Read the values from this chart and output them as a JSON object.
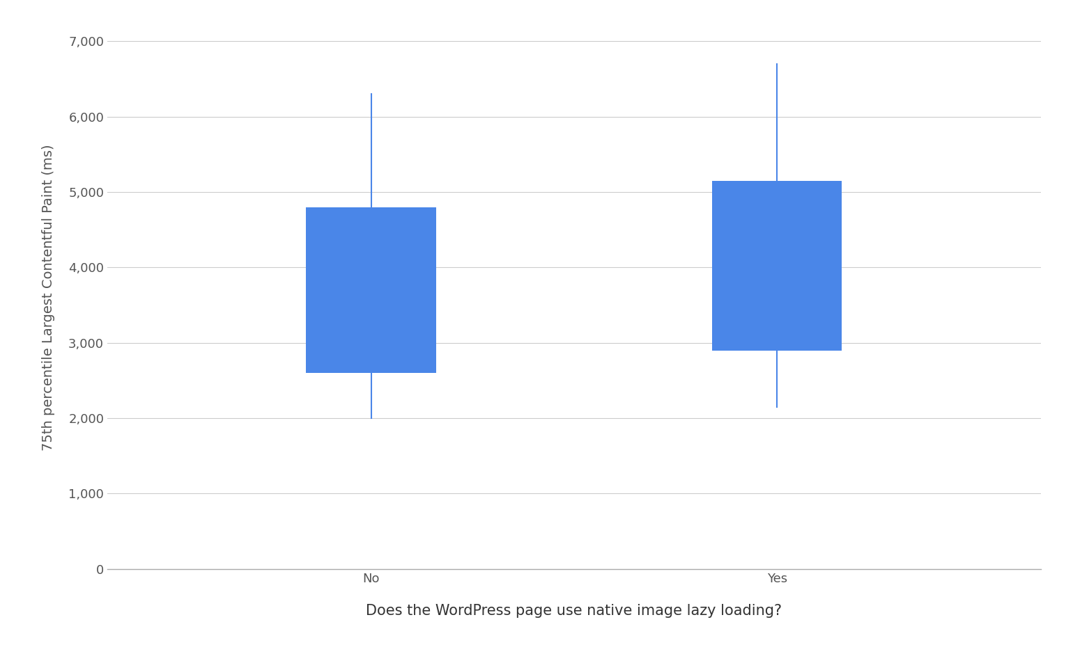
{
  "categories": [
    "No",
    "Yes"
  ],
  "p10": [
    2000,
    2150
  ],
  "p25": [
    2600,
    2900
  ],
  "p75": [
    4800,
    5150
  ],
  "p90": [
    6300,
    6700
  ],
  "box_color": "#4a86e8",
  "whisker_color": "#4a86e8",
  "ylabel": "75th percentile Largest Contentful Paint (ms)",
  "xlabel": "Does the WordPress page use native image lazy loading?",
  "ylim": [
    0,
    7200
  ],
  "yticks": [
    0,
    1000,
    2000,
    3000,
    4000,
    5000,
    6000,
    7000
  ],
  "ytick_labels": [
    "0",
    "1,000",
    "2,000",
    "3,000",
    "4,000",
    "5,000",
    "6,000",
    "7,000"
  ],
  "background_color": "#ffffff",
  "grid_color": "#cccccc",
  "ylabel_fontsize": 14,
  "xlabel_fontsize": 15,
  "tick_fontsize": 13,
  "box_width": 0.32,
  "whisker_linewidth": 1.5,
  "x_positions": [
    1.0,
    2.0
  ],
  "xlim": [
    0.35,
    2.65
  ]
}
